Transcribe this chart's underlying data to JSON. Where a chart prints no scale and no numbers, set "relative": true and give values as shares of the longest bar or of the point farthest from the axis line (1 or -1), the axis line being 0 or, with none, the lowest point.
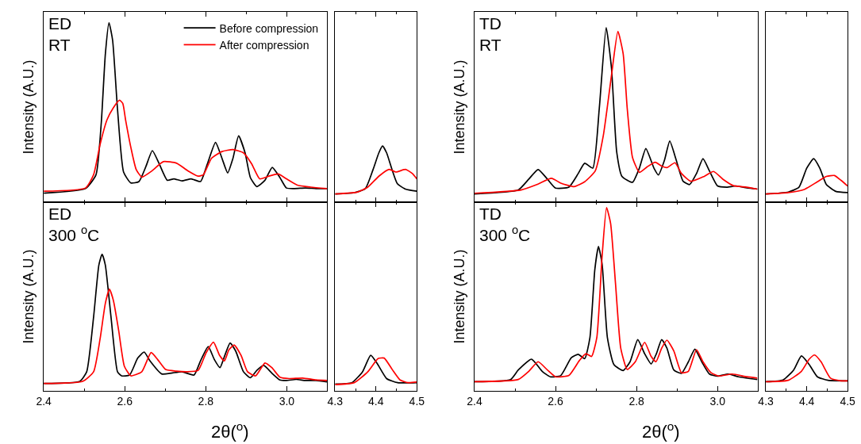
{
  "chart_data": [
    {
      "type": "line",
      "relative": true,
      "ylabel": "Intensity (A.U.)",
      "annotations": [
        "ED\nRT"
      ],
      "legend": "top right",
      "tick_labels": false,
      "xlim": [
        2.4,
        3.1
      ],
      "xticks": [
        2.4,
        {
          "value": 2.5,
          "label": null
        },
        2.6,
        {
          "value": 2.7,
          "label": null
        },
        2.8,
        {
          "value": 2.9,
          "label": null
        },
        3.0
      ],
      "series": [
        {
          "name": "Before compression",
          "color": "#000000",
          "x": [
            2.4,
            2.503,
            2.529,
            2.542,
            2.552,
            2.561,
            2.57,
            2.582,
            2.597,
            2.615,
            2.635,
            2.652,
            2.668,
            2.685,
            2.705,
            2.721,
            2.741,
            2.764,
            2.787,
            2.804,
            2.824,
            2.84,
            2.854,
            2.867,
            2.881,
            2.897,
            2.91,
            2.926,
            2.946,
            2.964,
            2.983,
            2.999,
            3.019,
            3.046,
            3.072,
            3.099
          ],
          "values": [
            0.05,
            0.076,
            0.153,
            0.443,
            0.824,
            1.0,
            0.901,
            0.519,
            0.168,
            0.107,
            0.115,
            0.198,
            0.287,
            0.214,
            0.122,
            0.13,
            0.119,
            0.13,
            0.115,
            0.214,
            0.333,
            0.244,
            0.163,
            0.244,
            0.369,
            0.275,
            0.137,
            0.087,
            0.122,
            0.194,
            0.137,
            0.079,
            0.076,
            0.079,
            0.076,
            0.076
          ]
        },
        {
          "name": "After compression",
          "color": "#ff0000",
          "x": [
            2.4,
            2.503,
            2.523,
            2.539,
            2.556,
            2.572,
            2.587,
            2.595,
            2.602,
            2.615,
            2.628,
            2.642,
            2.668,
            2.695,
            2.728,
            2.755,
            2.781,
            2.794,
            2.814,
            2.84,
            2.867,
            2.893,
            2.913,
            2.933,
            2.956,
            2.979,
            2.999,
            3.026,
            3.059,
            3.099
          ],
          "values": [
            0.061,
            0.079,
            0.153,
            0.321,
            0.458,
            0.527,
            0.568,
            0.55,
            0.458,
            0.305,
            0.183,
            0.14,
            0.176,
            0.226,
            0.217,
            0.176,
            0.145,
            0.153,
            0.244,
            0.282,
            0.293,
            0.275,
            0.214,
            0.13,
            0.145,
            0.157,
            0.13,
            0.095,
            0.084,
            0.076
          ]
        }
      ]
    },
    {
      "type": "line",
      "relative": true,
      "tick_labels": false,
      "xlim": [
        4.3,
        4.5
      ],
      "xticks": [
        4.3,
        {
          "value": 4.35,
          "label": null
        },
        4.4,
        {
          "value": 4.45,
          "label": null
        },
        4.5
      ],
      "series": [
        {
          "color": "#000000",
          "x": [
            4.3,
            4.347,
            4.374,
            4.393,
            4.407,
            4.416,
            4.426,
            4.439,
            4.452,
            4.472,
            4.5
          ],
          "values": [
            0.147,
            0.169,
            0.243,
            0.585,
            0.879,
            1.0,
            0.879,
            0.585,
            0.332,
            0.233,
            0.195
          ]
        },
        {
          "color": "#ff0000",
          "x": [
            4.3,
            4.354,
            4.38,
            4.407,
            4.432,
            4.449,
            4.472,
            4.489,
            4.5
          ],
          "values": [
            0.147,
            0.179,
            0.268,
            0.463,
            0.585,
            0.537,
            0.585,
            0.511,
            0.415
          ]
        }
      ]
    },
    {
      "type": "line",
      "relative": true,
      "ylabel": "Intensity (A.U.)",
      "annotations": [
        "TD\nRT"
      ],
      "tick_labels": false,
      "xlim": [
        2.4,
        3.1
      ],
      "xticks": [
        2.4,
        {
          "value": 2.5,
          "label": null
        },
        2.6,
        {
          "value": 2.7,
          "label": null
        },
        2.8,
        {
          "value": 2.9,
          "label": null
        },
        3.0
      ],
      "series": [
        {
          "color": "#000000",
          "x": [
            2.4,
            2.508,
            2.534,
            2.557,
            2.58,
            2.6,
            2.633,
            2.656,
            2.672,
            2.692,
            2.708,
            2.725,
            2.738,
            2.751,
            2.764,
            2.79,
            2.807,
            2.823,
            2.843,
            2.854,
            2.869,
            2.882,
            2.898,
            2.915,
            2.931,
            2.948,
            2.964,
            2.98,
            3.0,
            3.023,
            3.046,
            3.072,
            3.098
          ],
          "values": [
            0.047,
            0.07,
            0.132,
            0.187,
            0.132,
            0.081,
            0.086,
            0.164,
            0.223,
            0.195,
            0.537,
            1.0,
            0.771,
            0.288,
            0.148,
            0.114,
            0.195,
            0.307,
            0.195,
            0.156,
            0.241,
            0.35,
            0.241,
            0.12,
            0.101,
            0.164,
            0.249,
            0.179,
            0.093,
            0.086,
            0.093,
            0.082,
            0.075
          ]
        },
        {
          "color": "#ff0000",
          "x": [
            2.4,
            2.515,
            2.554,
            2.59,
            2.613,
            2.646,
            2.672,
            2.698,
            2.718,
            2.738,
            2.754,
            2.767,
            2.777,
            2.79,
            2.807,
            2.826,
            2.846,
            2.862,
            2.875,
            2.895,
            2.911,
            2.934,
            2.967,
            2.99,
            3.013,
            3.039,
            3.072,
            3.098
          ],
          "values": [
            0.051,
            0.07,
            0.101,
            0.137,
            0.109,
            0.089,
            0.117,
            0.179,
            0.382,
            0.724,
            0.978,
            0.85,
            0.537,
            0.257,
            0.171,
            0.202,
            0.229,
            0.207,
            0.198,
            0.226,
            0.164,
            0.12,
            0.148,
            0.176,
            0.132,
            0.095,
            0.086,
            0.075
          ]
        }
      ]
    },
    {
      "type": "line",
      "relative": true,
      "tick_labels": false,
      "xlim": [
        4.3,
        4.5
      ],
      "xticks": [
        4.3,
        {
          "value": 4.35,
          "label": null
        },
        4.4,
        {
          "value": 4.45,
          "label": null
        },
        4.5
      ],
      "series": [
        {
          "color": "#000000",
          "x": [
            4.3,
            4.355,
            4.381,
            4.4,
            4.417,
            4.432,
            4.448,
            4.471,
            4.5
          ],
          "values": [
            0.189,
            0.233,
            0.345,
            0.783,
            1.0,
            0.783,
            0.406,
            0.249,
            0.221
          ]
        },
        {
          "color": "#ff0000",
          "x": [
            4.3,
            4.355,
            4.394,
            4.426,
            4.448,
            4.468,
            4.484,
            4.5
          ],
          "values": [
            0.189,
            0.221,
            0.293,
            0.47,
            0.594,
            0.614,
            0.502,
            0.373
          ]
        }
      ]
    },
    {
      "type": "line",
      "relative": true,
      "ylabel": "Intensity (A.U.)",
      "xlabel": "2θ($^{o}$)",
      "annotations": [
        "ED\n300 $^{o}$C"
      ],
      "tick_labels": "x",
      "xlim": [
        2.4,
        3.1
      ],
      "xticks": [
        2.4,
        {
          "value": 2.5,
          "label": null
        },
        2.6,
        {
          "value": 2.7,
          "label": null
        },
        2.8,
        {
          "value": 2.9,
          "label": null
        },
        {
          "value": 3.0,
          "label": "3.0"
        }
      ],
      "series": [
        {
          "color": "#000000",
          "x": [
            2.4,
            2.489,
            2.506,
            2.523,
            2.536,
            2.544,
            2.552,
            2.566,
            2.582,
            2.592,
            2.612,
            2.632,
            2.648,
            2.662,
            2.691,
            2.715,
            2.741,
            2.771,
            2.787,
            2.806,
            2.821,
            2.835,
            2.847,
            2.86,
            2.874,
            2.893,
            2.91,
            2.926,
            2.943,
            2.963,
            2.983,
            2.999,
            3.023,
            3.046,
            3.072,
            3.099
          ],
          "values": [
            0.054,
            0.07,
            0.14,
            0.54,
            0.92,
            1.0,
            0.92,
            0.54,
            0.14,
            0.11,
            0.116,
            0.24,
            0.284,
            0.22,
            0.124,
            0.13,
            0.14,
            0.116,
            0.22,
            0.324,
            0.23,
            0.17,
            0.26,
            0.35,
            0.29,
            0.14,
            0.096,
            0.15,
            0.186,
            0.13,
            0.08,
            0.076,
            0.084,
            0.076,
            0.076,
            0.066
          ]
        },
        {
          "color": "#ff0000",
          "x": [
            2.4,
            2.496,
            2.523,
            2.539,
            2.552,
            2.562,
            2.572,
            2.585,
            2.599,
            2.615,
            2.642,
            2.665,
            2.681,
            2.701,
            2.728,
            2.754,
            2.781,
            2.801,
            2.819,
            2.834,
            2.846,
            2.857,
            2.87,
            2.887,
            2.903,
            2.923,
            2.946,
            2.963,
            2.983,
            3.006,
            3.039,
            3.072,
            3.099
          ],
          "values": [
            0.054,
            0.07,
            0.14,
            0.38,
            0.64,
            0.744,
            0.66,
            0.44,
            0.18,
            0.11,
            0.14,
            0.28,
            0.23,
            0.156,
            0.144,
            0.14,
            0.15,
            0.28,
            0.356,
            0.26,
            0.22,
            0.3,
            0.336,
            0.26,
            0.14,
            0.11,
            0.204,
            0.17,
            0.1,
            0.09,
            0.094,
            0.08,
            0.076
          ]
        }
      ]
    },
    {
      "type": "line",
      "relative": true,
      "tick_labels": "x",
      "xlim": [
        4.3,
        4.5
      ],
      "xticks": [
        4.3,
        {
          "value": 4.35,
          "label": null
        },
        4.4,
        {
          "value": 4.45,
          "label": null
        },
        4.5
      ],
      "series": [
        {
          "color": "#000000",
          "x": [
            4.3,
            4.341,
            4.367,
            4.387,
            4.403,
            4.426,
            4.453,
            4.5
          ],
          "values": [
            0.192,
            0.231,
            0.538,
            1.0,
            0.769,
            0.346,
            0.231,
            0.231
          ]
        },
        {
          "color": "#ff0000",
          "x": [
            4.3,
            4.347,
            4.38,
            4.405,
            4.42,
            4.439,
            4.459,
            4.478,
            4.5
          ],
          "values": [
            0.177,
            0.231,
            0.538,
            0.908,
            0.923,
            0.615,
            0.308,
            0.231,
            0.246
          ]
        }
      ]
    },
    {
      "type": "line",
      "relative": true,
      "ylabel": "Intensity (A.U.)",
      "xlabel": "2θ($^{o}$)",
      "annotations": [
        "TD\n300 $^{o}$C"
      ],
      "tick_labels": "x",
      "xlim": [
        2.4,
        3.1
      ],
      "xticks": [
        2.4,
        {
          "value": 2.5,
          "label": null
        },
        2.6,
        {
          "value": 2.7,
          "label": null
        },
        2.8,
        {
          "value": 2.9,
          "label": null
        },
        {
          "value": 3.0,
          "label": "3.0"
        }
      ],
      "series": [
        {
          "color": "#000000",
          "x": [
            2.4,
            2.489,
            2.508,
            2.541,
            2.567,
            2.587,
            2.613,
            2.639,
            2.656,
            2.672,
            2.685,
            2.697,
            2.706,
            2.715,
            2.728,
            2.744,
            2.767,
            2.784,
            2.803,
            2.82,
            2.836,
            2.849,
            2.862,
            2.875,
            2.892,
            2.911,
            2.928,
            2.944,
            2.961,
            2.98,
            3.0,
            3.026,
            3.052,
            3.098
          ],
          "values": [
            0.05,
            0.062,
            0.114,
            0.173,
            0.107,
            0.077,
            0.084,
            0.181,
            0.2,
            0.176,
            0.292,
            0.662,
            0.788,
            0.692,
            0.292,
            0.144,
            0.111,
            0.159,
            0.28,
            0.203,
            0.147,
            0.203,
            0.28,
            0.233,
            0.114,
            0.096,
            0.159,
            0.228,
            0.159,
            0.092,
            0.08,
            0.092,
            0.077,
            0.062
          ]
        },
        {
          "color": "#ff0000",
          "x": [
            2.4,
            2.508,
            2.534,
            2.557,
            2.58,
            2.6,
            2.633,
            2.659,
            2.675,
            2.689,
            2.702,
            2.715,
            2.726,
            2.736,
            2.748,
            2.761,
            2.777,
            2.797,
            2.82,
            2.836,
            2.848,
            2.862,
            2.875,
            2.892,
            2.911,
            2.928,
            2.948,
            2.964,
            2.984,
            3.003,
            3.036,
            3.072,
            3.098
          ],
          "values": [
            0.05,
            0.062,
            0.107,
            0.159,
            0.114,
            0.077,
            0.084,
            0.166,
            0.203,
            0.188,
            0.292,
            0.736,
            1.0,
            0.914,
            0.588,
            0.233,
            0.117,
            0.159,
            0.265,
            0.188,
            0.159,
            0.233,
            0.277,
            0.218,
            0.099,
            0.107,
            0.225,
            0.159,
            0.099,
            0.081,
            0.092,
            0.077,
            0.07
          ]
        }
      ]
    },
    {
      "type": "line",
      "relative": true,
      "tick_labels": "x",
      "xlim": [
        4.3,
        4.5
      ],
      "xticks": [
        4.3,
        {
          "value": 4.35,
          "label": null
        },
        4.4,
        {
          "value": 4.45,
          "label": null
        },
        4.5
      ],
      "series": [
        {
          "color": "#000000",
          "x": [
            4.3,
            4.342,
            4.368,
            4.387,
            4.406,
            4.426,
            4.452,
            4.5
          ],
          "values": [
            0.255,
            0.301,
            0.582,
            0.974,
            0.735,
            0.393,
            0.296,
            0.281
          ]
        },
        {
          "color": "#ff0000",
          "x": [
            4.3,
            4.355,
            4.387,
            4.406,
            4.419,
            4.435,
            4.458,
            4.484,
            4.5
          ],
          "values": [
            0.255,
            0.296,
            0.546,
            0.883,
            1.0,
            0.811,
            0.357,
            0.281,
            0.281
          ]
        }
      ]
    }
  ]
}
